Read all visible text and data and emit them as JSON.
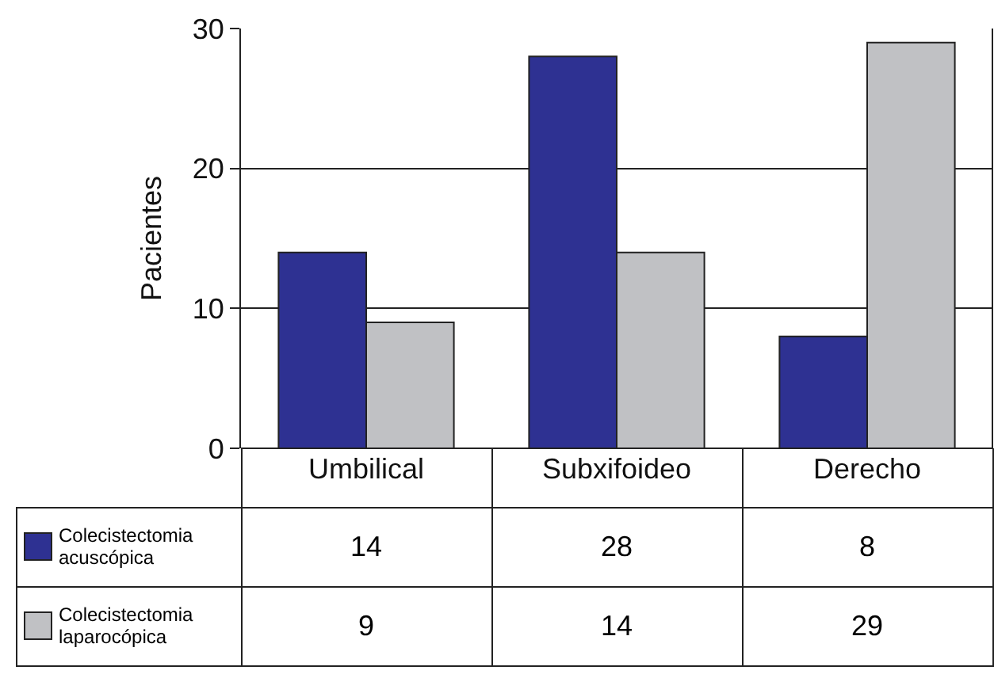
{
  "chart_data": {
    "type": "bar",
    "ylabel": "Pacientes",
    "categories": [
      "Umbilical",
      "Subxifoideo",
      "Derecho"
    ],
    "series": [
      {
        "name": "Colecistectomia acuscópica",
        "color": "#2e3192",
        "values": [
          14,
          28,
          8
        ]
      },
      {
        "name": "Colecistectomia laparocópica",
        "color": "#c0c1c4",
        "values": [
          9,
          14,
          29
        ]
      }
    ],
    "ylim": [
      0,
      30
    ],
    "yticks": [
      0,
      10,
      20,
      30
    ],
    "grid": "y",
    "legend": "bottom left",
    "data_labels": true
  }
}
